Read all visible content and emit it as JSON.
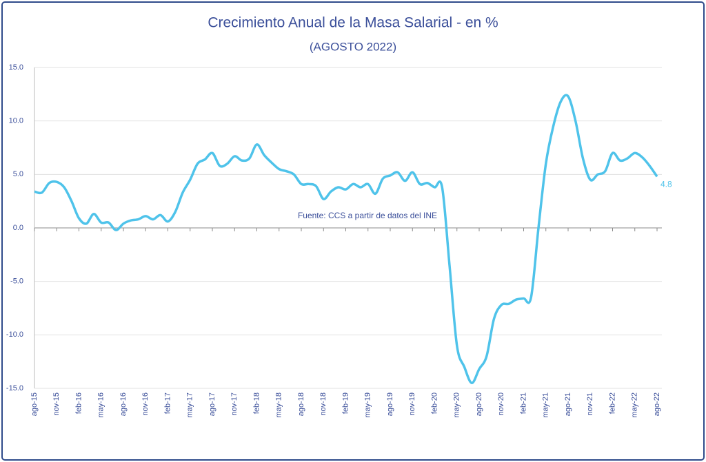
{
  "chart_data": {
    "type": "line",
    "title": "Crecimiento Anual de la Masa Salarial - en %",
    "subtitle": "(AGOSTO 2022)",
    "annotation": "Fuente: CCS a partir de datos del INE",
    "categories": [
      "ago-15",
      null,
      null,
      "nov-15",
      null,
      null,
      "feb-16",
      null,
      null,
      "may-16",
      null,
      null,
      "ago-16",
      null,
      null,
      "nov-16",
      null,
      null,
      "feb-17",
      null,
      null,
      "may-17",
      null,
      null,
      "ago-17",
      null,
      null,
      "nov-17",
      null,
      null,
      "feb-18",
      null,
      null,
      "may-18",
      null,
      null,
      "ago-18",
      null,
      null,
      "nov-18",
      null,
      null,
      "feb-19",
      null,
      null,
      "may-19",
      null,
      null,
      "ago-19",
      null,
      null,
      "nov-19",
      null,
      null,
      "feb-20",
      null,
      null,
      "may-20",
      null,
      null,
      "ago-20",
      null,
      null,
      "nov-20",
      null,
      null,
      "feb-21",
      null,
      null,
      "may-21",
      null,
      null,
      "ago-21",
      null,
      null,
      "nov-21",
      null,
      null,
      "feb-22",
      null,
      null,
      "may-22",
      null,
      null,
      "ago-22"
    ],
    "series": [
      {
        "color": "#4fc3ea",
        "values": [
          3.4,
          3.3,
          4.2,
          4.3,
          3.8,
          2.5,
          0.9,
          0.4,
          1.3,
          0.5,
          0.5,
          -0.2,
          0.4,
          0.7,
          0.8,
          1.1,
          0.8,
          1.2,
          0.6,
          1.5,
          3.3,
          4.5,
          6.0,
          6.4,
          7.0,
          5.8,
          6.0,
          6.7,
          6.3,
          6.5,
          7.8,
          6.8,
          6.1,
          5.5,
          5.3,
          5.0,
          4.1,
          4.1,
          3.9,
          2.7,
          3.4,
          3.8,
          3.6,
          4.1,
          3.8,
          4.1,
          3.2,
          4.6,
          4.9,
          5.2,
          4.4,
          5.2,
          4.1,
          4.2,
          3.8,
          3.8,
          -3.5,
          -11.0,
          -13.0,
          -14.5,
          -13.2,
          -12.0,
          -8.5,
          -7.2,
          -7.1,
          -6.7,
          -6.6,
          -6.5,
          0.0,
          6.0,
          9.5,
          11.8,
          12.3,
          10.0,
          6.5,
          4.5,
          5.0,
          5.3,
          7.0,
          6.3,
          6.5,
          7.0,
          6.6,
          5.8,
          4.8
        ]
      }
    ],
    "ylim": [
      -15,
      15
    ],
    "yticks": [
      {
        "value": -15,
        "label": "-15.0"
      },
      {
        "value": -10,
        "label": "-10.0"
      },
      {
        "value": -5,
        "label": "-5.0"
      },
      {
        "value": 0,
        "label": "0.0"
      },
      {
        "value": 5,
        "label": "5.0"
      },
      {
        "value": 10,
        "label": "10.0"
      },
      {
        "value": 15,
        "label": "15.0"
      }
    ],
    "grid": true
  }
}
